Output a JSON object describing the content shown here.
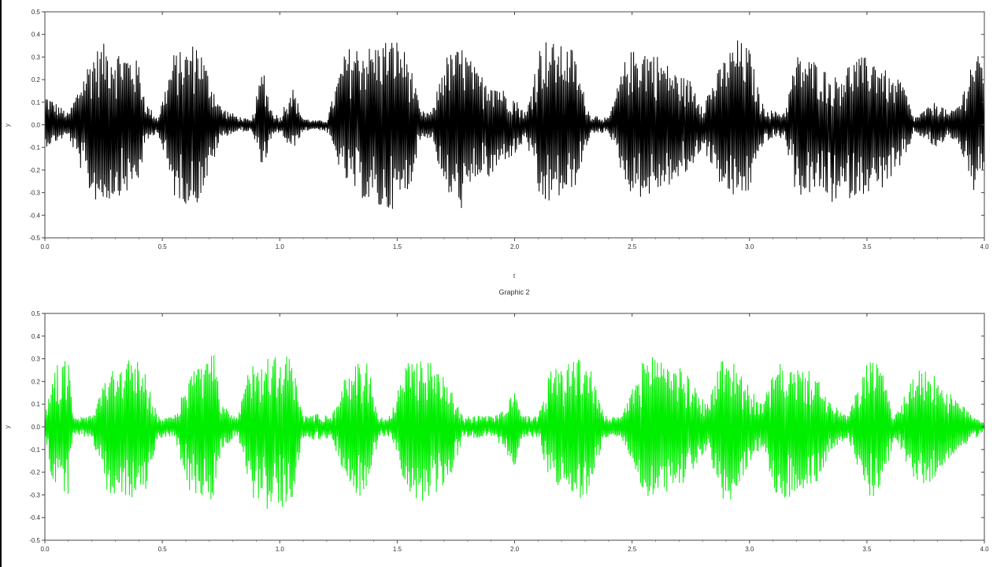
{
  "chart_data": [
    {
      "type": "line",
      "title": "",
      "xlabel": "t",
      "ylabel": "y",
      "xlim": [
        0.0,
        4.0
      ],
      "ylim": [
        -0.5,
        0.5
      ],
      "grid": false,
      "x_ticks": [
        "0.0",
        "0.5",
        "1.0",
        "1.5",
        "2.0",
        "2.5",
        "3.0",
        "3.5",
        "4.0"
      ],
      "y_ticks": [
        "0.5",
        "0.4",
        "0.3",
        "0.2",
        "0.1",
        "0.0",
        "-0.1",
        "-0.2",
        "-0.3",
        "-0.4",
        "-0.5"
      ],
      "series": [
        {
          "name": "",
          "color": "#000000",
          "x": [
            0.0,
            0.1,
            0.2,
            0.25,
            0.3,
            0.35,
            0.4,
            0.43,
            0.48,
            0.55,
            0.6,
            0.65,
            0.7,
            0.75,
            0.82,
            0.88,
            0.93,
            0.96,
            1.0,
            1.05,
            1.1,
            1.15,
            1.2,
            1.27,
            1.3,
            1.4,
            1.45,
            1.5,
            1.55,
            1.6,
            1.65,
            1.7,
            1.78,
            1.85,
            1.9,
            1.95,
            2.0,
            2.05,
            2.1,
            2.13,
            2.2,
            2.25,
            2.28,
            2.32,
            2.4,
            2.48,
            2.55,
            2.6,
            2.7,
            2.75,
            2.8,
            2.9,
            2.95,
            3.0,
            3.05,
            3.1,
            3.15,
            3.2,
            3.3,
            3.35,
            3.45,
            3.5,
            3.55,
            3.6,
            3.65,
            3.7,
            3.8,
            3.85,
            3.9,
            3.95,
            4.0
          ],
          "y_max": [
            0.14,
            0.05,
            0.32,
            0.36,
            0.34,
            0.32,
            0.28,
            0.1,
            0.03,
            0.32,
            0.33,
            0.38,
            0.22,
            0.08,
            0.04,
            0.02,
            0.27,
            0.08,
            0.03,
            0.18,
            0.03,
            0.02,
            0.02,
            0.3,
            0.35,
            0.35,
            0.38,
            0.38,
            0.3,
            0.06,
            0.06,
            0.3,
            0.35,
            0.22,
            0.22,
            0.16,
            0.12,
            0.05,
            0.34,
            0.38,
            0.35,
            0.34,
            0.2,
            0.05,
            0.03,
            0.32,
            0.35,
            0.32,
            0.22,
            0.2,
            0.1,
            0.31,
            0.38,
            0.34,
            0.1,
            0.06,
            0.06,
            0.31,
            0.28,
            0.2,
            0.3,
            0.3,
            0.3,
            0.2,
            0.2,
            0.03,
            0.11,
            0.05,
            0.11,
            0.31,
            0.3
          ],
          "y_min": [
            -0.1,
            -0.05,
            -0.33,
            -0.35,
            -0.32,
            -0.3,
            -0.25,
            -0.08,
            -0.03,
            -0.32,
            -0.35,
            -0.35,
            -0.22,
            -0.06,
            -0.03,
            -0.03,
            -0.2,
            -0.08,
            -0.03,
            -0.12,
            -0.03,
            -0.02,
            -0.03,
            -0.24,
            -0.28,
            -0.37,
            -0.39,
            -0.36,
            -0.3,
            -0.06,
            -0.06,
            -0.3,
            -0.38,
            -0.22,
            -0.25,
            -0.16,
            -0.14,
            -0.06,
            -0.33,
            -0.36,
            -0.32,
            -0.3,
            -0.2,
            -0.05,
            -0.03,
            -0.29,
            -0.33,
            -0.3,
            -0.25,
            -0.2,
            -0.1,
            -0.32,
            -0.33,
            -0.3,
            -0.1,
            -0.06,
            -0.06,
            -0.32,
            -0.3,
            -0.35,
            -0.32,
            -0.3,
            -0.3,
            -0.24,
            -0.2,
            -0.03,
            -0.11,
            -0.05,
            -0.11,
            -0.3,
            -0.28
          ]
        }
      ]
    },
    {
      "type": "line",
      "title": "Graphic 2",
      "xlabel": "",
      "ylabel": "y",
      "xlim": [
        0.0,
        4.0
      ],
      "ylim": [
        -0.5,
        0.5
      ],
      "grid": false,
      "x_ticks": [
        "0.0",
        "0.5",
        "1.0",
        "1.5",
        "2.0",
        "2.5",
        "3.0",
        "3.5",
        "4.0"
      ],
      "y_ticks": [
        "0.5",
        "0.4",
        "0.3",
        "0.2",
        "0.1",
        "0.0",
        "-0.1",
        "-0.2",
        "-0.3",
        "-0.4",
        "-0.5"
      ],
      "series": [
        {
          "name": "",
          "color": "#00ee00",
          "x": [
            0.0,
            0.03,
            0.07,
            0.1,
            0.12,
            0.2,
            0.27,
            0.35,
            0.42,
            0.48,
            0.55,
            0.62,
            0.68,
            0.72,
            0.75,
            0.82,
            0.88,
            0.95,
            1.0,
            1.05,
            1.1,
            1.15,
            1.22,
            1.3,
            1.32,
            1.38,
            1.42,
            1.47,
            1.55,
            1.6,
            1.65,
            1.72,
            1.78,
            1.85,
            1.92,
            2.0,
            2.03,
            2.1,
            2.15,
            2.22,
            2.28,
            2.32,
            2.38,
            2.45,
            2.55,
            2.6,
            2.65,
            2.72,
            2.82,
            2.88,
            2.93,
            2.97,
            3.05,
            3.12,
            3.2,
            3.28,
            3.35,
            3.42,
            3.5,
            3.55,
            3.62,
            3.7,
            3.78,
            3.85,
            3.9,
            4.0
          ],
          "y_max": [
            0.05,
            0.25,
            0.29,
            0.3,
            0.04,
            0.05,
            0.25,
            0.3,
            0.28,
            0.05,
            0.04,
            0.25,
            0.28,
            0.33,
            0.1,
            0.04,
            0.31,
            0.32,
            0.33,
            0.31,
            0.05,
            0.06,
            0.05,
            0.28,
            0.29,
            0.28,
            0.04,
            0.05,
            0.31,
            0.31,
            0.28,
            0.22,
            0.05,
            0.05,
            0.05,
            0.16,
            0.05,
            0.05,
            0.25,
            0.3,
            0.3,
            0.28,
            0.05,
            0.04,
            0.3,
            0.34,
            0.3,
            0.25,
            0.1,
            0.31,
            0.31,
            0.22,
            0.1,
            0.28,
            0.26,
            0.24,
            0.1,
            0.05,
            0.29,
            0.29,
            0.05,
            0.25,
            0.25,
            0.15,
            0.1,
            0.02
          ],
          "y_min": [
            -0.04,
            -0.25,
            -0.3,
            -0.32,
            -0.04,
            -0.05,
            -0.3,
            -0.33,
            -0.32,
            -0.05,
            -0.04,
            -0.3,
            -0.33,
            -0.33,
            -0.1,
            -0.04,
            -0.32,
            -0.37,
            -0.36,
            -0.34,
            -0.05,
            -0.06,
            -0.05,
            -0.28,
            -0.32,
            -0.3,
            -0.04,
            -0.05,
            -0.31,
            -0.36,
            -0.32,
            -0.25,
            -0.05,
            -0.05,
            -0.05,
            -0.2,
            -0.05,
            -0.05,
            -0.25,
            -0.33,
            -0.32,
            -0.3,
            -0.05,
            -0.04,
            -0.3,
            -0.32,
            -0.3,
            -0.25,
            -0.1,
            -0.33,
            -0.32,
            -0.22,
            -0.1,
            -0.33,
            -0.3,
            -0.26,
            -0.1,
            -0.05,
            -0.3,
            -0.31,
            -0.05,
            -0.27,
            -0.25,
            -0.15,
            -0.1,
            -0.02
          ]
        }
      ]
    }
  ]
}
